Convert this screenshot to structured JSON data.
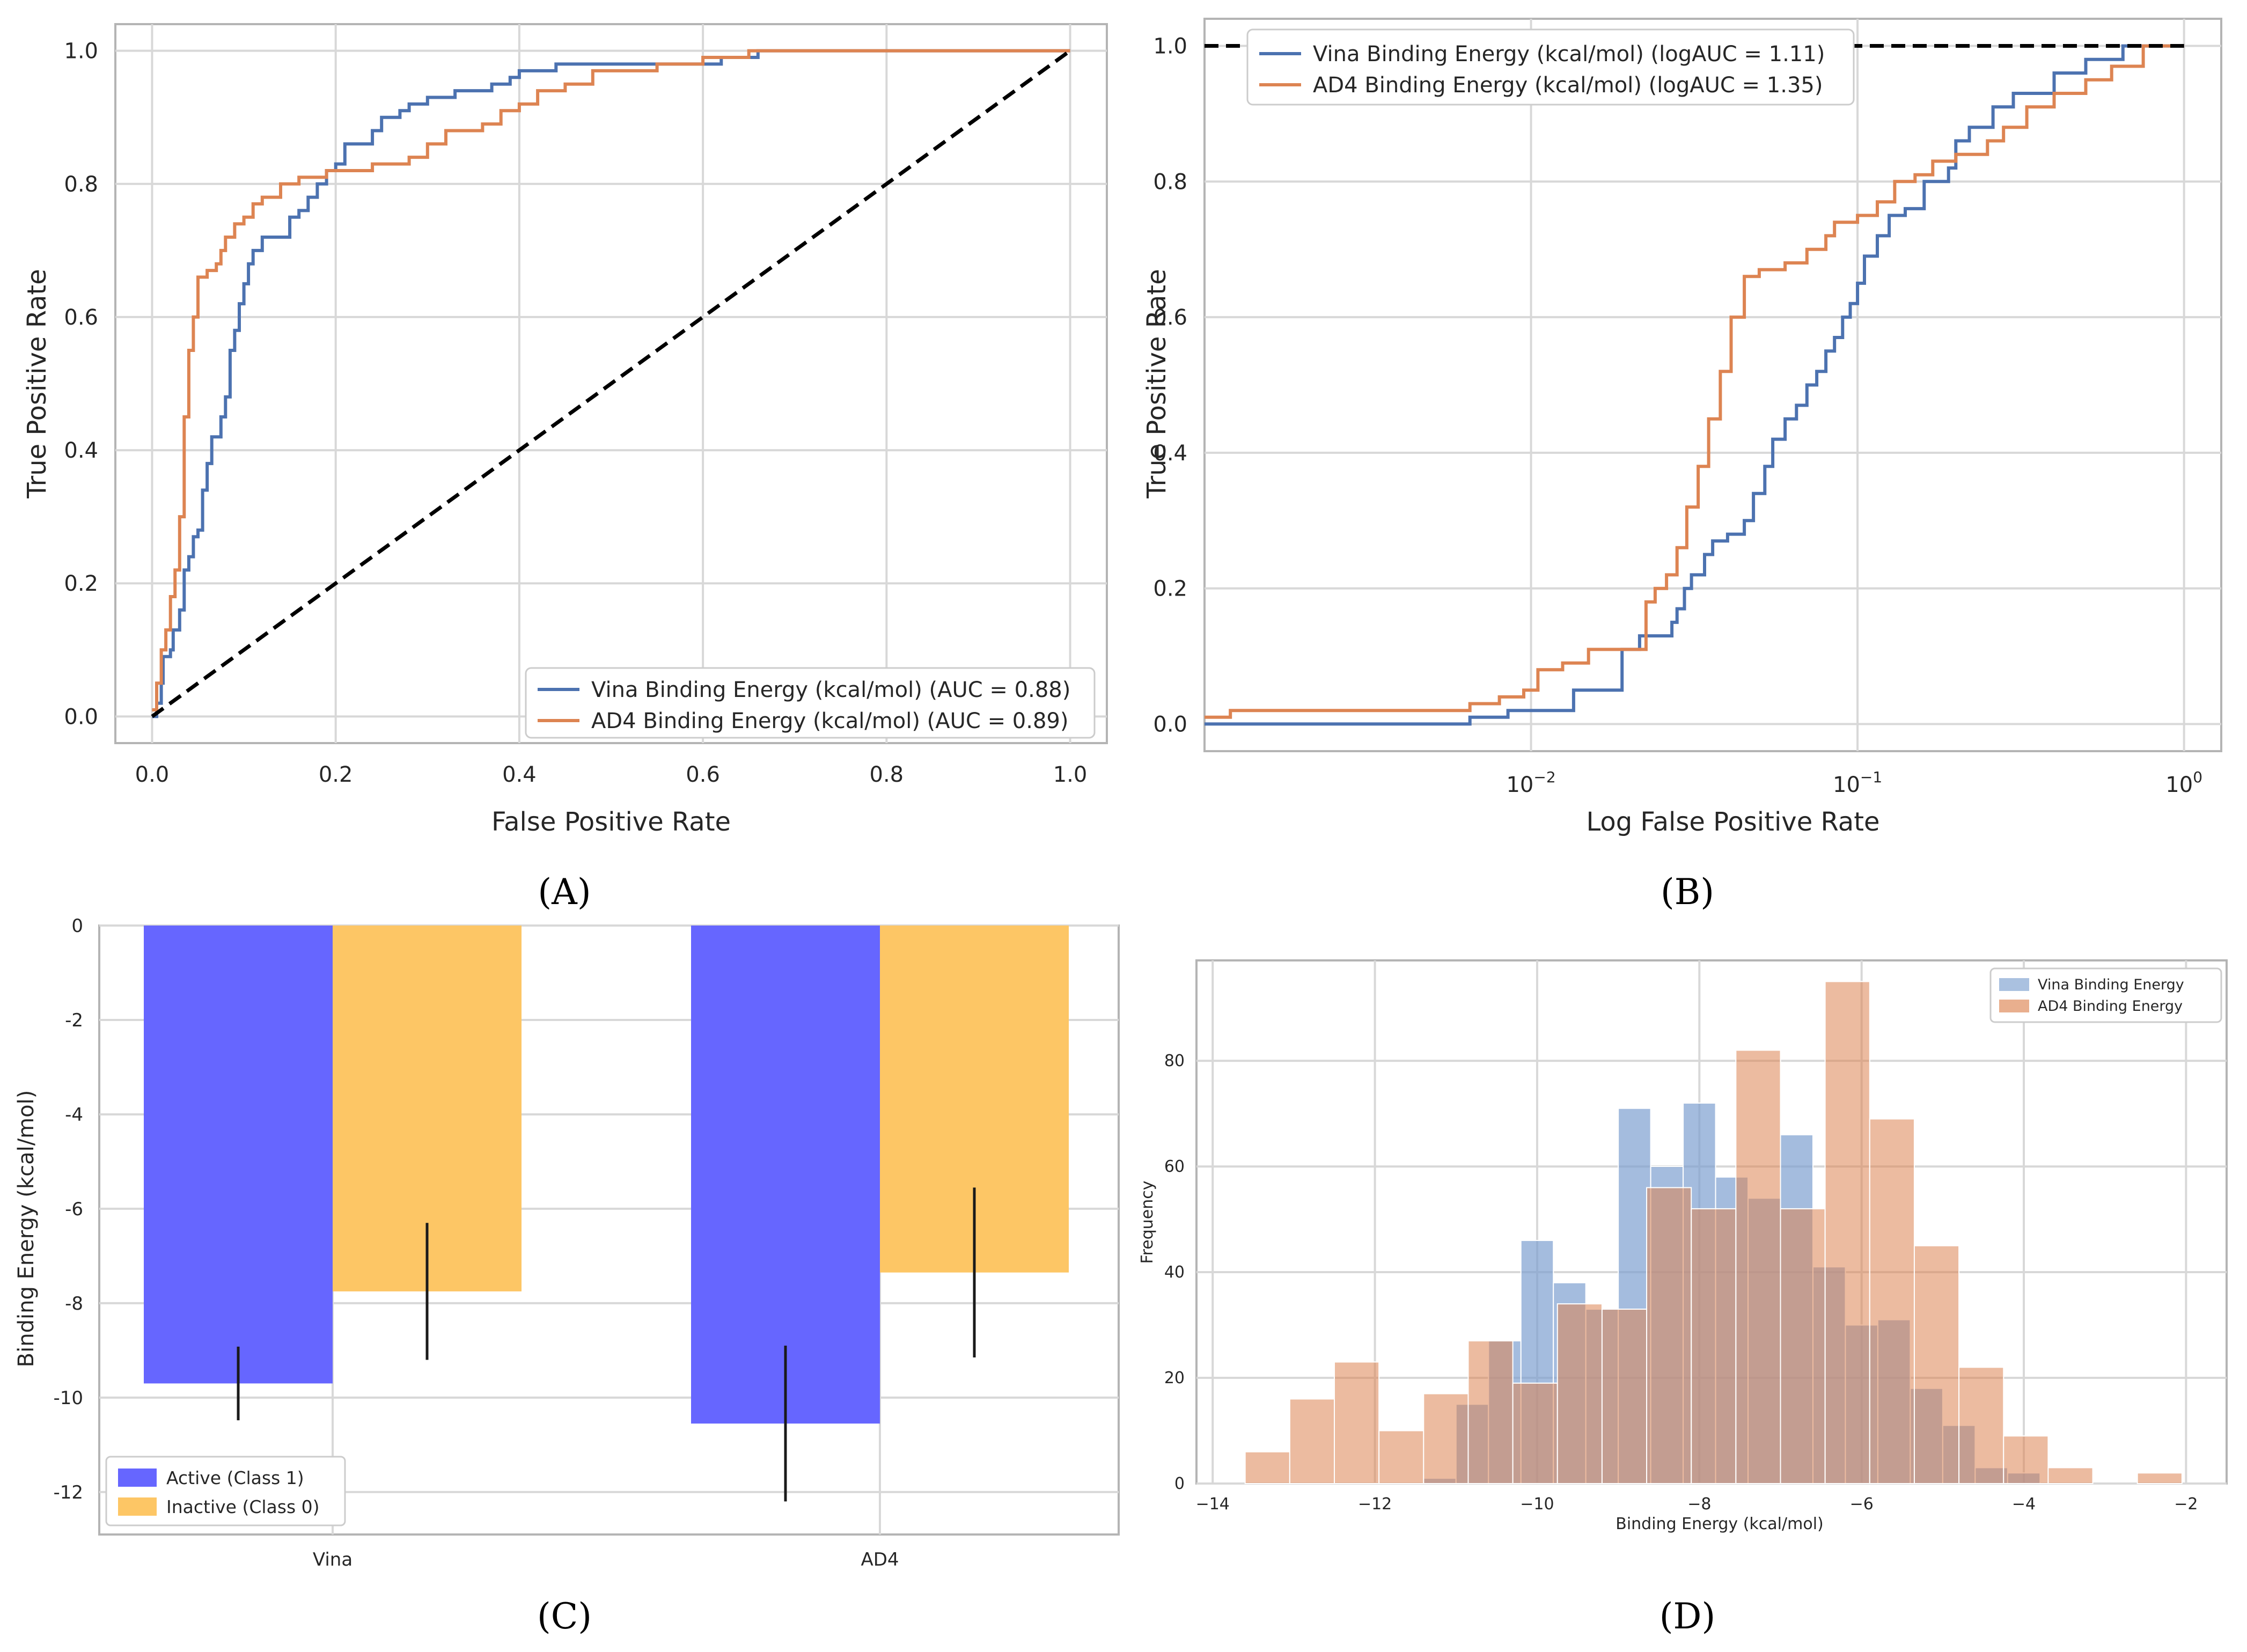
{
  "chart_data": [
    {
      "panel": "A",
      "type": "line",
      "panel_label": "(A)",
      "xlabel": "False Positive Rate",
      "ylabel": "True Positive Rate",
      "xlim": [
        -0.04,
        1.04
      ],
      "ylim": [
        -0.04,
        1.04
      ],
      "xticks": [
        "0.0",
        "0.2",
        "0.4",
        "0.6",
        "0.8",
        "1.0"
      ],
      "yticks": [
        "0.0",
        "0.2",
        "0.4",
        "0.6",
        "0.8",
        "1.0"
      ],
      "legend_position": "lower-right",
      "series": [
        {
          "name": "Vina Binding Energy (kcal/mol) (AUC = 0.88)",
          "color": "#4c72b0",
          "x": [
            0.0,
            0.005,
            0.01,
            0.012,
            0.02,
            0.023,
            0.03,
            0.035,
            0.04,
            0.045,
            0.05,
            0.055,
            0.06,
            0.065,
            0.07,
            0.075,
            0.08,
            0.085,
            0.09,
            0.095,
            0.1,
            0.105,
            0.11,
            0.12,
            0.13,
            0.15,
            0.16,
            0.17,
            0.18,
            0.19,
            0.2,
            0.21,
            0.22,
            0.24,
            0.25,
            0.27,
            0.28,
            0.3,
            0.33,
            0.37,
            0.39,
            0.4,
            0.44,
            0.48,
            0.5,
            0.55,
            0.6,
            0.62,
            0.66,
            0.7,
            0.8,
            0.9,
            1.0
          ],
          "y": [
            0.0,
            0.02,
            0.05,
            0.09,
            0.1,
            0.13,
            0.16,
            0.22,
            0.24,
            0.27,
            0.28,
            0.34,
            0.38,
            0.42,
            0.42,
            0.45,
            0.48,
            0.55,
            0.58,
            0.62,
            0.65,
            0.68,
            0.7,
            0.72,
            0.72,
            0.75,
            0.76,
            0.78,
            0.8,
            0.82,
            0.83,
            0.86,
            0.86,
            0.88,
            0.9,
            0.91,
            0.92,
            0.93,
            0.94,
            0.95,
            0.96,
            0.97,
            0.98,
            0.98,
            0.98,
            0.98,
            0.98,
            0.99,
            1.0,
            1.0,
            1.0,
            1.0,
            1.0
          ]
        },
        {
          "name": "AD4 Binding Energy (kcal/mol) (AUC = 0.89)",
          "color": "#dd8452",
          "x": [
            0.0,
            0.005,
            0.01,
            0.015,
            0.02,
            0.025,
            0.03,
            0.035,
            0.04,
            0.045,
            0.05,
            0.06,
            0.07,
            0.075,
            0.08,
            0.09,
            0.1,
            0.11,
            0.12,
            0.14,
            0.16,
            0.19,
            0.24,
            0.28,
            0.3,
            0.32,
            0.36,
            0.38,
            0.4,
            0.42,
            0.45,
            0.48,
            0.55,
            0.6,
            0.65,
            0.7,
            0.8,
            0.9,
            1.0
          ],
          "y": [
            0.01,
            0.05,
            0.1,
            0.13,
            0.18,
            0.22,
            0.3,
            0.45,
            0.55,
            0.6,
            0.66,
            0.67,
            0.68,
            0.7,
            0.72,
            0.74,
            0.75,
            0.77,
            0.78,
            0.8,
            0.81,
            0.82,
            0.83,
            0.84,
            0.86,
            0.88,
            0.89,
            0.91,
            0.92,
            0.94,
            0.95,
            0.97,
            0.98,
            0.99,
            1.0,
            1.0,
            1.0,
            1.0,
            1.0
          ]
        },
        {
          "name": "chance",
          "color": "#000000",
          "dashed": true,
          "x": [
            0.0,
            1.0
          ],
          "y": [
            0.0,
            1.0
          ]
        }
      ]
    },
    {
      "panel": "B",
      "type": "line",
      "panel_label": "(B)",
      "xscale": "log",
      "xlabel": "Log False Positive Rate",
      "ylabel": "True Positive Rate",
      "xlim": [
        0.001,
        1.3
      ],
      "ylim": [
        -0.04,
        1.04
      ],
      "xticks_exp": [
        "-2",
        "-1",
        "0"
      ],
      "xtick_base": "10",
      "yticks": [
        "0.0",
        "0.2",
        "0.4",
        "0.6",
        "0.8",
        "1.0"
      ],
      "legend_position": "top-left",
      "series": [
        {
          "name": "Vina Binding Energy (kcal/mol) (logAUC = 1.11)",
          "color": "#4c72b0",
          "x": [
            0.001,
            0.0055,
            0.0065,
            0.0075,
            0.0085,
            0.0125,
            0.0135,
            0.018,
            0.019,
            0.0215,
            0.027,
            0.028,
            0.0295,
            0.031,
            0.034,
            0.036,
            0.04,
            0.045,
            0.048,
            0.052,
            0.055,
            0.06,
            0.065,
            0.07,
            0.075,
            0.08,
            0.085,
            0.09,
            0.095,
            0.1,
            0.105,
            0.115,
            0.125,
            0.14,
            0.16,
            0.19,
            0.2,
            0.22,
            0.26,
            0.3,
            0.4,
            0.5,
            0.6,
            0.65,
            1.0
          ],
          "y": [
            0.0,
            0.0,
            0.01,
            0.01,
            0.02,
            0.02,
            0.05,
            0.05,
            0.11,
            0.13,
            0.15,
            0.17,
            0.2,
            0.22,
            0.25,
            0.27,
            0.28,
            0.3,
            0.34,
            0.38,
            0.42,
            0.45,
            0.47,
            0.5,
            0.52,
            0.55,
            0.57,
            0.6,
            0.62,
            0.65,
            0.69,
            0.72,
            0.75,
            0.76,
            0.8,
            0.82,
            0.86,
            0.88,
            0.91,
            0.93,
            0.96,
            0.98,
            0.98,
            1.0,
            1.0
          ]
        },
        {
          "name": "AD4 Binding Energy (kcal/mol) (logAUC = 1.35)",
          "color": "#dd8452",
          "x": [
            0.001,
            0.0012,
            0.005,
            0.0065,
            0.008,
            0.0095,
            0.0105,
            0.0125,
            0.015,
            0.0195,
            0.0225,
            0.024,
            0.026,
            0.028,
            0.03,
            0.0325,
            0.035,
            0.038,
            0.041,
            0.045,
            0.05,
            0.06,
            0.07,
            0.08,
            0.085,
            0.1,
            0.115,
            0.13,
            0.15,
            0.17,
            0.2,
            0.25,
            0.28,
            0.33,
            0.4,
            0.5,
            0.6,
            0.75,
            1.0
          ],
          "y": [
            0.01,
            0.02,
            0.02,
            0.03,
            0.04,
            0.05,
            0.08,
            0.09,
            0.11,
            0.11,
            0.18,
            0.2,
            0.22,
            0.26,
            0.32,
            0.38,
            0.45,
            0.52,
            0.6,
            0.66,
            0.67,
            0.68,
            0.7,
            0.72,
            0.74,
            0.75,
            0.77,
            0.8,
            0.81,
            0.83,
            0.84,
            0.86,
            0.88,
            0.91,
            0.93,
            0.95,
            0.97,
            1.0,
            1.0
          ]
        },
        {
          "name": "reference",
          "color": "#000000",
          "dashed": true,
          "x": [
            0.001,
            1.0
          ],
          "y": [
            1.0,
            1.0
          ]
        }
      ]
    },
    {
      "panel": "C",
      "type": "bar",
      "panel_label": "(C)",
      "xlabel": "",
      "ylabel": "Binding Energy (kcal/mol)",
      "categories": [
        "Vina",
        "AD4"
      ],
      "ylim": [
        -12.9,
        0
      ],
      "yticks": [
        "0",
        "-2",
        "-4",
        "-6",
        "-8",
        "-10",
        "-12"
      ],
      "legend_position": "lower-left",
      "series": [
        {
          "name": "Active (Class 1)",
          "color": "#6666ff",
          "values": [
            -9.7,
            -10.55
          ],
          "errors": [
            0.78,
            1.65
          ]
        },
        {
          "name": "Inactive (Class 0)",
          "color": "#fdc665",
          "values": [
            -7.75,
            -7.35
          ],
          "errors": [
            1.45,
            1.8
          ]
        }
      ]
    },
    {
      "panel": "D",
      "type": "histogram",
      "panel_label": "(D)",
      "xlabel": "Binding Energy (kcal/mol)",
      "ylabel": "Frequency",
      "xlim": [
        -14.2,
        -1.5
      ],
      "ylim": [
        0,
        99
      ],
      "xticks": [
        "−14",
        "−12",
        "−10",
        "−8",
        "−6",
        "−4",
        "−2"
      ],
      "yticks": [
        "0",
        "20",
        "40",
        "60",
        "80"
      ],
      "legend_position": "top-right",
      "series": [
        {
          "name": "Vina Binding Energy",
          "color": "#7da0d0",
          "bins": [
            [
              -11.4,
              -11.0,
              1
            ],
            [
              -11.0,
              -10.6,
              15
            ],
            [
              -10.6,
              -10.2,
              27
            ],
            [
              -10.2,
              -9.8,
              46
            ],
            [
              -9.8,
              -9.4,
              38
            ],
            [
              -9.4,
              -9.0,
              33
            ],
            [
              -9.0,
              -8.6,
              71
            ],
            [
              -8.6,
              -8.2,
              60
            ],
            [
              -8.2,
              -7.8,
              72
            ],
            [
              -7.8,
              -7.4,
              58
            ],
            [
              -7.4,
              -7.0,
              54
            ],
            [
              -7.0,
              -6.6,
              66
            ],
            [
              -6.6,
              -6.2,
              41
            ],
            [
              -6.2,
              -5.8,
              30
            ],
            [
              -5.8,
              -5.4,
              31
            ],
            [
              -5.4,
              -5.0,
              18
            ],
            [
              -5.0,
              -4.6,
              11
            ],
            [
              -4.6,
              -4.2,
              3
            ],
            [
              -4.2,
              -3.8,
              2
            ]
          ]
        },
        {
          "name": "AD4 Binding Energy",
          "color": "#dd8452",
          "bins": [
            [
              -13.6,
              -13.05,
              6
            ],
            [
              -13.05,
              -12.5,
              16
            ],
            [
              -12.5,
              -11.95,
              23
            ],
            [
              -11.95,
              -11.4,
              10
            ],
            [
              -11.4,
              -10.85,
              17
            ],
            [
              -10.85,
              -10.3,
              27
            ],
            [
              -10.3,
              -9.75,
              19
            ],
            [
              -9.75,
              -9.2,
              34
            ],
            [
              -9.2,
              -8.65,
              33
            ],
            [
              -8.65,
              -8.1,
              56
            ],
            [
              -8.1,
              -7.55,
              52
            ],
            [
              -7.55,
              -7.0,
              82
            ],
            [
              -7.0,
              -6.45,
              52
            ],
            [
              -6.45,
              -5.9,
              95
            ],
            [
              -5.9,
              -5.35,
              69
            ],
            [
              -5.35,
              -4.8,
              45
            ],
            [
              -4.8,
              -4.25,
              22
            ],
            [
              -4.25,
              -3.7,
              9
            ],
            [
              -3.7,
              -3.15,
              3
            ],
            [
              -3.15,
              -2.6,
              0
            ],
            [
              -2.6,
              -2.05,
              2
            ]
          ]
        }
      ]
    }
  ]
}
